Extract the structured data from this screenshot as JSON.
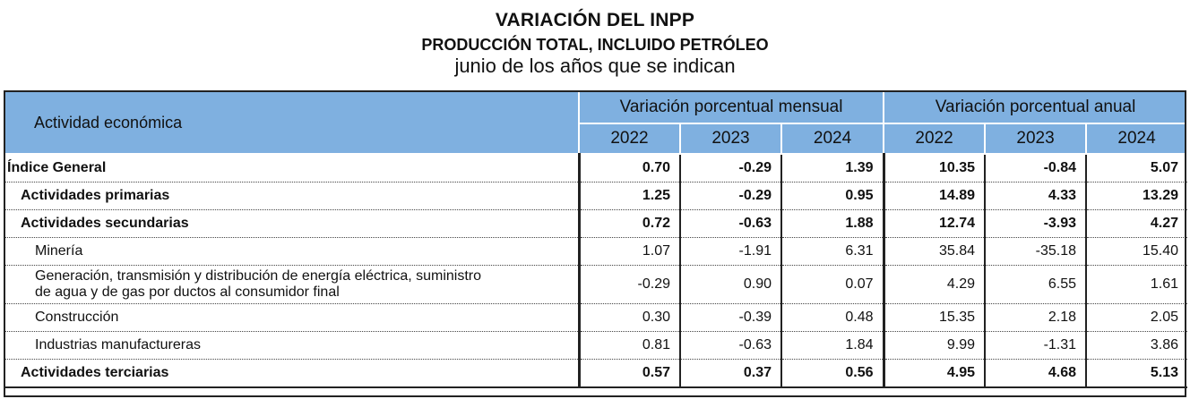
{
  "title": "VARIACIÓN DEL INPP",
  "subtitle": "PRODUCCIÓN TOTAL, INCLUIDO PETRÓLEO",
  "period": "junio de los años que se indican",
  "header": {
    "activity": "Actividad económica",
    "monthly": "Variación porcentual mensual",
    "annual": "Variación porcentual anual",
    "years": [
      "2022",
      "2023",
      "2024",
      "2022",
      "2023",
      "2024"
    ]
  },
  "rows": [
    {
      "label": "Índice General",
      "values": [
        "0.70",
        "-0.29",
        "1.39",
        "10.35",
        "-0.84",
        "5.07"
      ]
    },
    {
      "label": "Actividades primarias",
      "values": [
        "1.25",
        "-0.29",
        "0.95",
        "14.89",
        "4.33",
        "13.29"
      ]
    },
    {
      "label": "Actividades secundarias",
      "values": [
        "0.72",
        "-0.63",
        "1.88",
        "12.74",
        "-3.93",
        "4.27"
      ]
    },
    {
      "label": "Minería",
      "values": [
        "1.07",
        "-1.91",
        "6.31",
        "35.84",
        "-35.18",
        "15.40"
      ]
    },
    {
      "label_line1": "Generación, transmisión y distribución de energía eléctrica, suministro",
      "label_line2": "de agua y de gas por ductos al consumidor final",
      "values": [
        "-0.29",
        "0.90",
        "0.07",
        "4.29",
        "6.55",
        "1.61"
      ]
    },
    {
      "label": "Construcción",
      "values": [
        "0.30",
        "-0.39",
        "0.48",
        "15.35",
        "2.18",
        "2.05"
      ]
    },
    {
      "label": "Industrias manufactureras",
      "values": [
        "0.81",
        "-0.63",
        "1.84",
        "9.99",
        "-1.31",
        "3.86"
      ]
    },
    {
      "label": "Actividades terciarias",
      "values": [
        "0.57",
        "0.37",
        "0.56",
        "4.95",
        "4.68",
        "5.13"
      ]
    }
  ]
}
